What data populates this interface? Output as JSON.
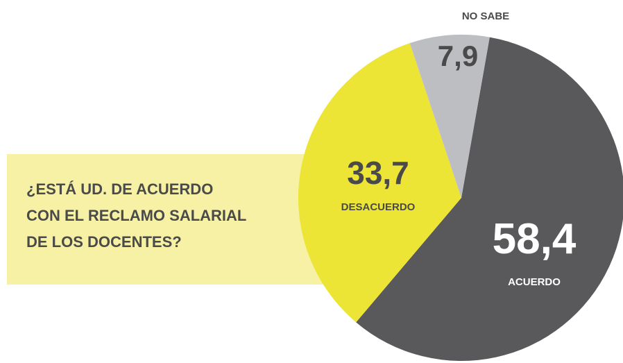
{
  "chart_data": {
    "type": "pie",
    "title": [
      "¿ESTÁ UD. DE ACUERDO",
      "CON EL RECLAMO SALARIAL",
      "DE LOS DOCENTES?"
    ],
    "categories": [
      "ACUERDO",
      "DESACUERDO",
      "NO SABE"
    ],
    "values": [
      58.4,
      33.7,
      7.9
    ],
    "value_labels": [
      "58,4",
      "33,7",
      "7,9"
    ],
    "colors": [
      "#59595b",
      "#ece535",
      "#bdbec1"
    ]
  }
}
